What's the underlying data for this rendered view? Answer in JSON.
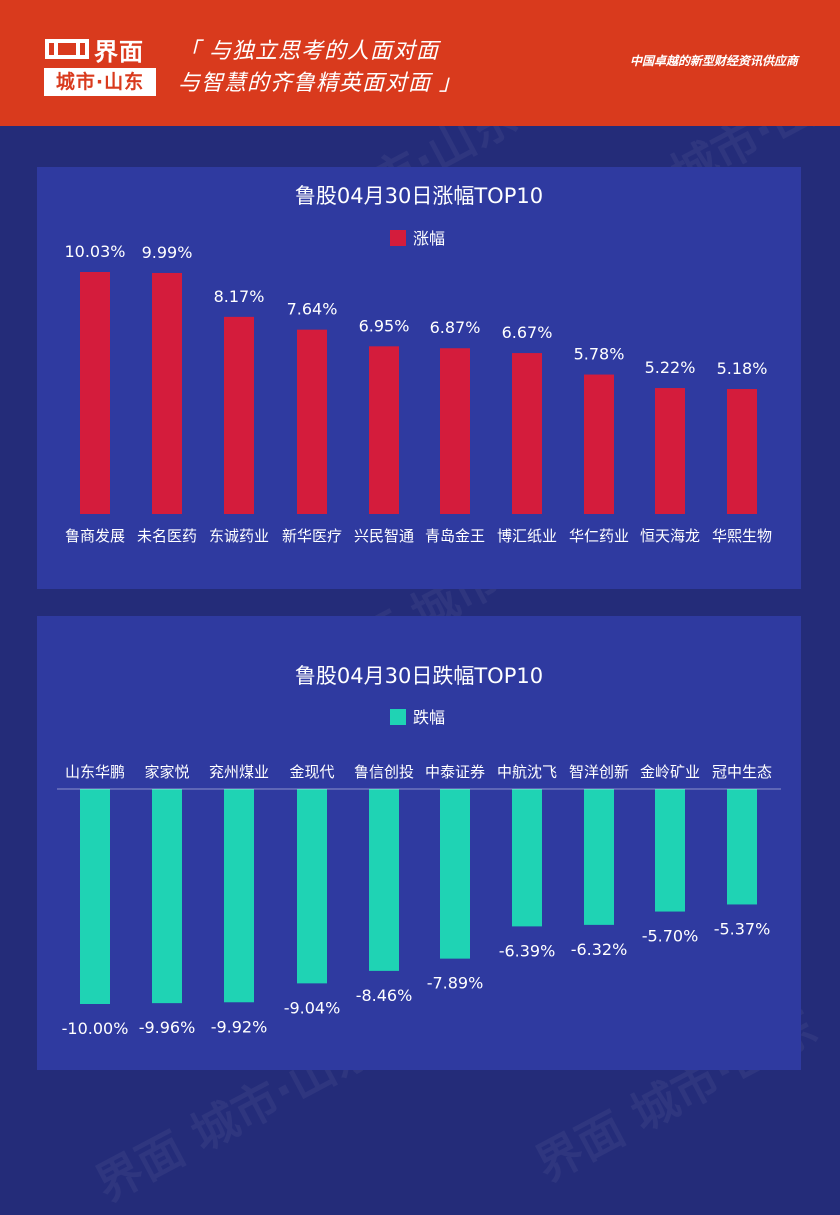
{
  "header": {
    "logo_text": "界面",
    "logo_city": "城市·山东",
    "slogan_line1": "「 与独立思考的人面对面",
    "slogan_line2": "与智慧的齐鲁精英面对面 」",
    "tagline": "中国卓越的新型财经资讯供应商",
    "watermark_text": "界面 城市·山东"
  },
  "colors": {
    "header_bg": "#d93a1d",
    "page_bg": "#242c79",
    "panel_bg": "#2f3aa0",
    "rise_color": "#d41c3c",
    "fall_color": "#1fd3b4"
  },
  "chart_data": [
    {
      "type": "bar",
      "title": "鲁股04月30日涨幅TOP10",
      "categories": [
        "鲁商发展",
        "未名医药",
        "东诚药业",
        "新华医疗",
        "兴民智通",
        "青岛金王",
        "博汇纸业",
        "华仁药业",
        "恒天海龙",
        "华熙生物"
      ],
      "series": [
        {
          "name": "涨幅",
          "values": [
            10.03,
            9.99,
            8.17,
            7.64,
            6.95,
            6.87,
            6.67,
            5.78,
            5.22,
            5.18
          ],
          "labels": [
            "10.03%",
            "9.99%",
            "8.17%",
            "7.64%",
            "6.95%",
            "6.87%",
            "6.67%",
            "5.78%",
            "5.22%",
            "5.18%"
          ]
        }
      ],
      "legend_position": "top-center",
      "grid": false,
      "ylim": [
        0,
        10.03
      ]
    },
    {
      "type": "bar",
      "title": "鲁股04月30日跌幅TOP10",
      "categories": [
        "山东华鹏",
        "家家悦",
        "兖州煤业",
        "金现代",
        "鲁信创投",
        "中泰证券",
        "中航沈飞",
        "智洋创新",
        "金岭矿业",
        "冠中生态"
      ],
      "series": [
        {
          "name": "跌幅",
          "values": [
            -10.0,
            -9.96,
            -9.92,
            -9.04,
            -8.46,
            -7.89,
            -6.39,
            -6.32,
            -5.7,
            -5.37
          ],
          "labels": [
            "-10.00%",
            "-9.96%",
            "-9.92%",
            "-9.04%",
            "-8.46%",
            "-7.89%",
            "-6.39%",
            "-6.32%",
            "-5.70%",
            "-5.37%"
          ]
        }
      ],
      "legend_position": "top-center",
      "grid": false,
      "ylim": [
        -10.0,
        0
      ]
    }
  ]
}
